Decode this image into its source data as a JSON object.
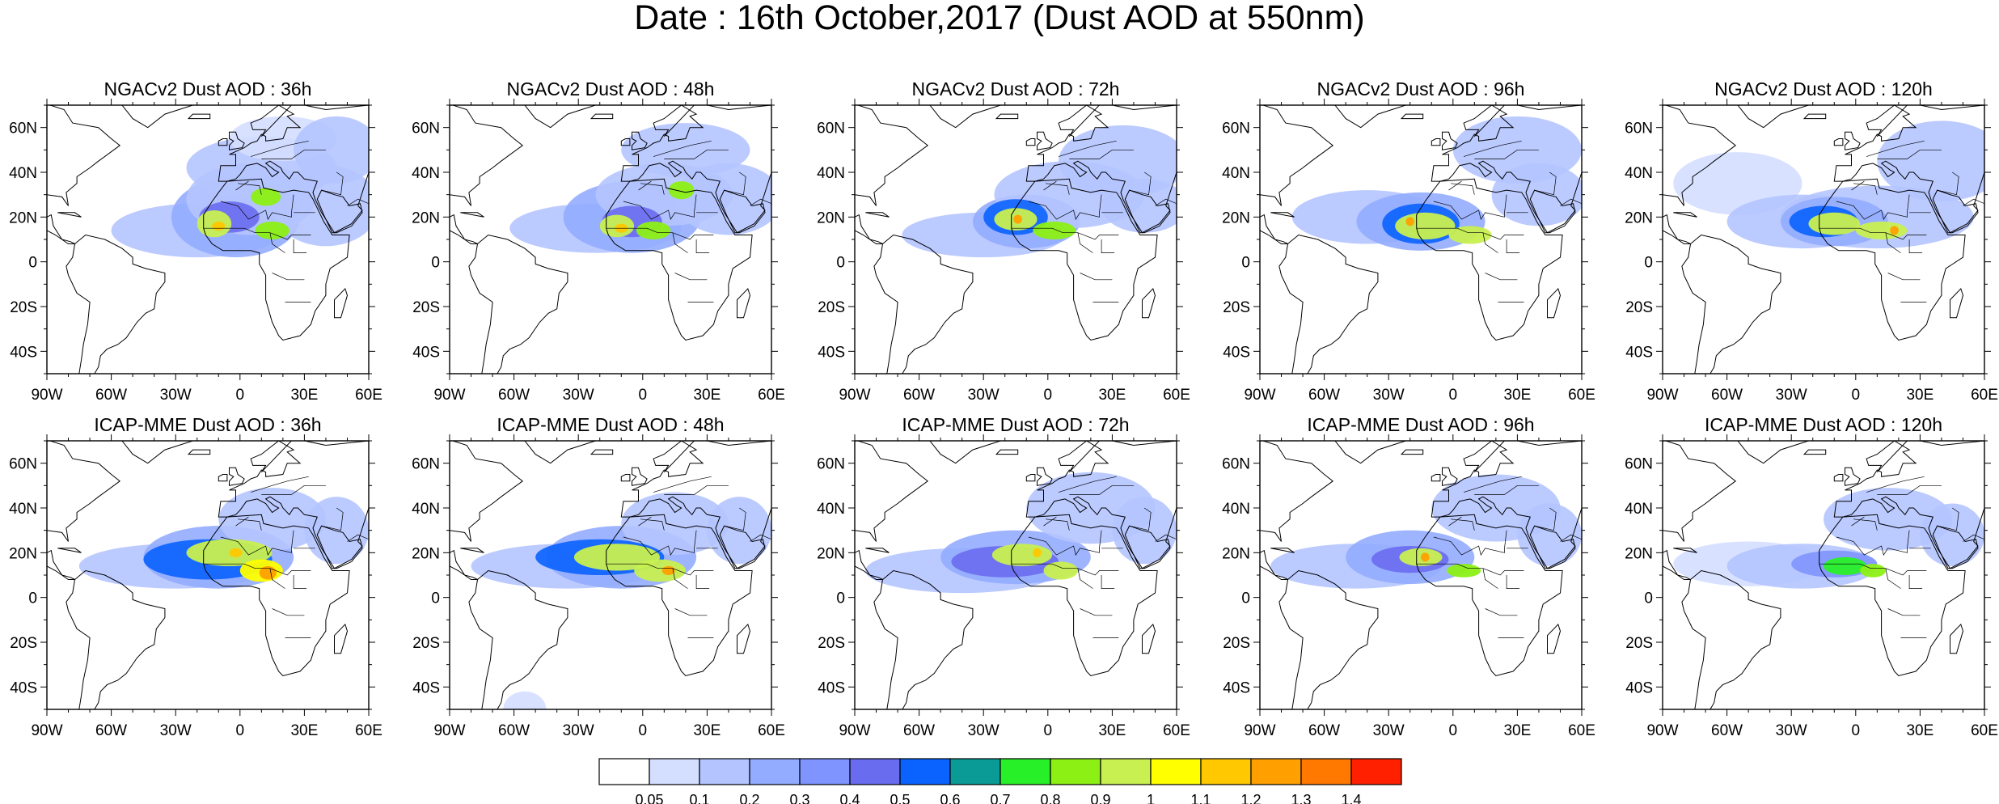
{
  "title": "Date : 16th October,2017 (Dust AOD at 550nm)",
  "map": {
    "lon_range": [
      -90,
      60
    ],
    "lat_range": [
      -50,
      70
    ],
    "lon_ticks": [
      "90W",
      "60W",
      "30W",
      "0",
      "30E",
      "60E"
    ],
    "lat_ticks": [
      "60N",
      "40N",
      "20N",
      "0",
      "20S",
      "40S"
    ]
  },
  "panels": [
    {
      "title": "NGACv2 Dust AOD : 36h",
      "model": "NGACv2",
      "lead": "36h"
    },
    {
      "title": "NGACv2 Dust AOD : 48h",
      "model": "NGACv2",
      "lead": "48h"
    },
    {
      "title": "NGACv2 Dust AOD : 72h",
      "model": "NGACv2",
      "lead": "72h"
    },
    {
      "title": "NGACv2 Dust AOD : 96h",
      "model": "NGACv2",
      "lead": "96h"
    },
    {
      "title": "NGACv2 Dust AOD : 120h",
      "model": "NGACv2",
      "lead": "120h"
    },
    {
      "title": "ICAP-MME Dust AOD : 36h",
      "model": "ICAP-MME",
      "lead": "36h"
    },
    {
      "title": "ICAP-MME Dust AOD : 48h",
      "model": "ICAP-MME",
      "lead": "48h"
    },
    {
      "title": "ICAP-MME Dust AOD : 72h",
      "model": "ICAP-MME",
      "lead": "72h"
    },
    {
      "title": "ICAP-MME Dust AOD : 96h",
      "model": "ICAP-MME",
      "lead": "96h"
    },
    {
      "title": "ICAP-MME Dust AOD : 120h",
      "model": "ICAP-MME",
      "lead": "120h"
    }
  ],
  "colorbar": {
    "labels": [
      "0.05",
      "0.1",
      "0.2",
      "0.3",
      "0.4",
      "0.5",
      "0.6",
      "0.7",
      "0.8",
      "0.9",
      "1",
      "1.1",
      "1.2",
      "1.3",
      "1.4"
    ],
    "colors": [
      "#ffffff",
      "#d4deff",
      "#b4c4ff",
      "#93acff",
      "#7f94ff",
      "#6a6cf0",
      "#0a63ff",
      "#0a9b96",
      "#28f028",
      "#8cf014",
      "#c8f050",
      "#ffff00",
      "#ffc800",
      "#ffa000",
      "#ff7800",
      "#ff2000"
    ]
  }
}
